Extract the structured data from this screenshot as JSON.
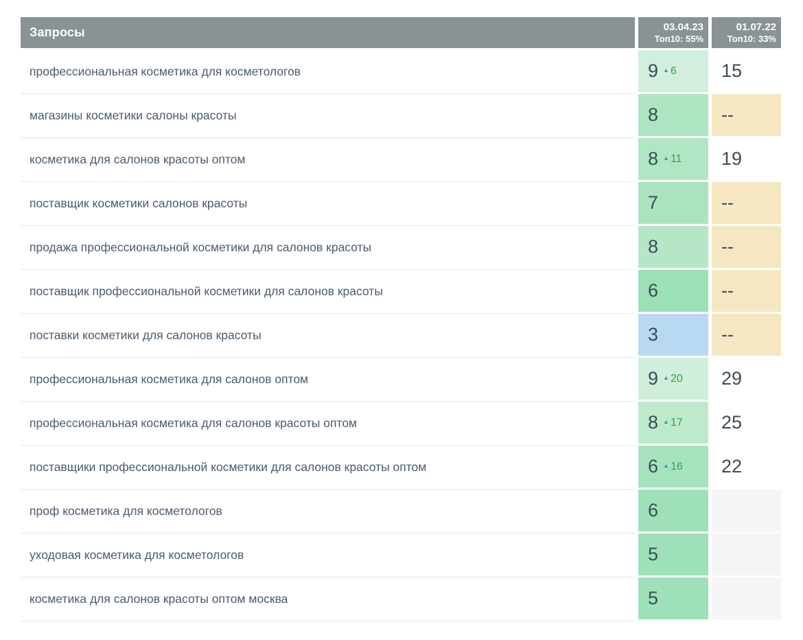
{
  "table": {
    "header": {
      "queries_label": "Запросы",
      "columns": [
        {
          "date": "03.04.23",
          "top10": "Топ10: 55%"
        },
        {
          "date": "01.07.22",
          "top10": "Топ10: 33%"
        }
      ]
    },
    "rows": [
      {
        "query": "профессиональная косметика для косметологов",
        "pos": "9",
        "delta": "6",
        "pos_bg": "#d2efdd",
        "prev": "15",
        "prev_bg": "#ffffff"
      },
      {
        "query": "магазины косметики салоны красоты",
        "pos": "8",
        "delta": "",
        "pos_bg": "#aee5c1",
        "prev": "--",
        "prev_bg": "#f4e7c2"
      },
      {
        "query": "косметика для салонов красоты оптом",
        "pos": "8",
        "delta": "11",
        "pos_bg": "#b1e6c4",
        "prev": "19",
        "prev_bg": "#ffffff"
      },
      {
        "query": "поставщик косметики салонов красоты",
        "pos": "7",
        "delta": "",
        "pos_bg": "#a9e4be",
        "prev": "--",
        "prev_bg": "#f4e7c2"
      },
      {
        "query": "продажа профессиональной косметики для салонов красоты",
        "pos": "8",
        "delta": "",
        "pos_bg": "#b5e7c7",
        "prev": "--",
        "prev_bg": "#f4e7c2"
      },
      {
        "query": "поставщик профессиональной косметики для салонов красоты",
        "pos": "6",
        "delta": "",
        "pos_bg": "#9ce0b6",
        "prev": "--",
        "prev_bg": "#f4e7c2"
      },
      {
        "query": "поставки косметики для салонов красоты",
        "pos": "3",
        "delta": "",
        "pos_bg": "#b9d9f3",
        "prev": "--",
        "prev_bg": "#f4e7c2"
      },
      {
        "query": "профессиональная косметика для салонов оптом",
        "pos": "9",
        "delta": "20",
        "pos_bg": "#cfeedb",
        "prev": "29",
        "prev_bg": "#ffffff"
      },
      {
        "query": "профессиональная косметика для салонов красоты оптом",
        "pos": "8",
        "delta": "17",
        "pos_bg": "#beeacc",
        "prev": "25",
        "prev_bg": "#ffffff"
      },
      {
        "query": "поставщики профессиональной косметики для салонов красоты оптом",
        "pos": "6",
        "delta": "16",
        "pos_bg": "#a5e3bd",
        "prev": "22",
        "prev_bg": "#ffffff"
      },
      {
        "query": "проф косметика для косметологов",
        "pos": "6",
        "delta": "",
        "pos_bg": "#9ee1b8",
        "prev": "",
        "prev_bg": "#f5f5f5"
      },
      {
        "query": "уходовая косметика для косметологов",
        "pos": "5",
        "delta": "",
        "pos_bg": "#9ee1b8",
        "prev": "",
        "prev_bg": "#f5f5f5"
      },
      {
        "query": "косметика для салонов красоты оптом москва",
        "pos": "5",
        "delta": "",
        "pos_bg": "#9ee1b8",
        "prev": "",
        "prev_bg": "#f5f5f5"
      }
    ]
  },
  "icons": {
    "up_arrow": "▲"
  },
  "colors": {
    "header_bg": "#899393",
    "header_text": "#ffffff",
    "query_text": "#4a5b6e",
    "position_text": "#3b4c57",
    "delta_green": "#2fa73f",
    "arrow_teal": "#2aa79b",
    "missing_beige": "#f4e7c2",
    "empty_gray": "#f5f5f5",
    "row_divider": "#e3e6e8"
  }
}
